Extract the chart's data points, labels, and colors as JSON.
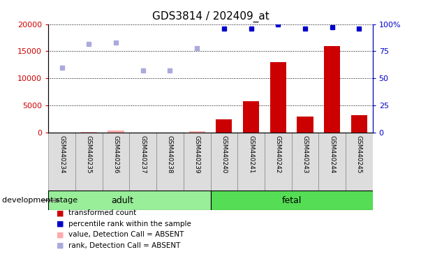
{
  "title": "GDS3814 / 202409_at",
  "samples": [
    "GSM440234",
    "GSM440235",
    "GSM440236",
    "GSM440237",
    "GSM440238",
    "GSM440239",
    "GSM440240",
    "GSM440241",
    "GSM440242",
    "GSM440243",
    "GSM440244",
    "GSM440245"
  ],
  "groups": [
    "adult",
    "adult",
    "adult",
    "adult",
    "adult",
    "adult",
    "fetal",
    "fetal",
    "fetal",
    "fetal",
    "fetal",
    "fetal"
  ],
  "transformed_count": [
    0,
    200,
    400,
    0,
    0,
    300,
    2500,
    5800,
    13000,
    3000,
    16000,
    3200
  ],
  "is_absent": [
    true,
    true,
    true,
    true,
    true,
    true,
    false,
    false,
    false,
    false,
    false,
    false
  ],
  "percentile_rank": [
    0,
    0,
    0,
    0,
    0,
    0,
    96,
    96,
    100,
    96,
    97,
    96
  ],
  "absent_rank": [
    60,
    82,
    83,
    57,
    57,
    78,
    0,
    0,
    0,
    0,
    0,
    0
  ],
  "ylim_left": [
    0,
    20000
  ],
  "ylim_right": [
    0,
    100
  ],
  "yticks_left": [
    0,
    5000,
    10000,
    15000,
    20000
  ],
  "yticks_right": [
    0,
    25,
    50,
    75,
    100
  ],
  "yticklabels_left": [
    "0",
    "5000",
    "10000",
    "15000",
    "20000"
  ],
  "yticklabels_right": [
    "0",
    "25",
    "50",
    "75",
    "100%"
  ],
  "bar_color_present": "#CC0000",
  "bar_color_absent": "#FFAAAA",
  "dot_color_present": "#0000CC",
  "dot_color_absent": "#AAAADD",
  "adult_color": "#99EE99",
  "fetal_color": "#55DD55",
  "background_color": "#FFFFFF",
  "legend_items": [
    {
      "label": "transformed count",
      "color": "#CC0000"
    },
    {
      "label": "percentile rank within the sample",
      "color": "#0000CC"
    },
    {
      "label": "value, Detection Call = ABSENT",
      "color": "#FFAAAA"
    },
    {
      "label": "rank, Detection Call = ABSENT",
      "color": "#AAAADD"
    }
  ]
}
